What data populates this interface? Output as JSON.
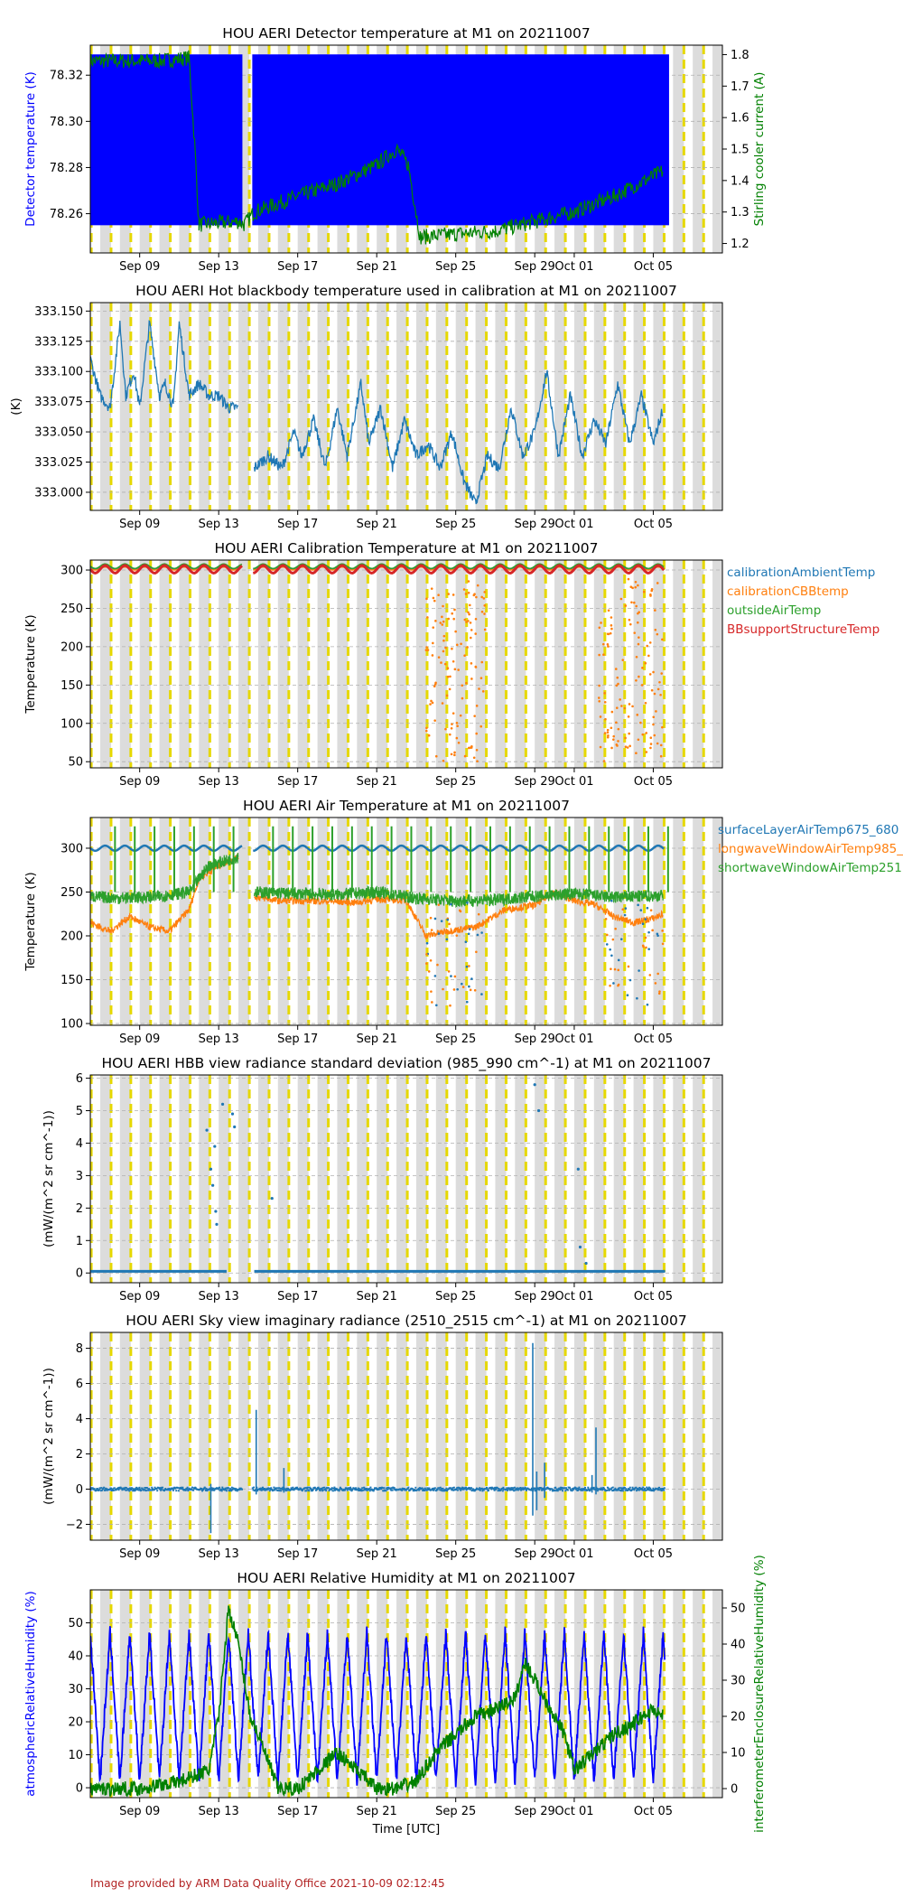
{
  "footer": "Image provided by ARM Data Quality Office 2021-10-09 02:12:45",
  "x_axis": {
    "ticks": [
      "Sep 09",
      "Sep 13",
      "Sep 17",
      "Sep 21",
      "Sep 25",
      "Sep 29",
      "Oct 01",
      "Oct 05"
    ],
    "xlabel": "Time [UTC]"
  },
  "chart_data": [
    {
      "type": "line",
      "title": "HOU AERI Detector temperature at M1 on 20211007",
      "ylabel": "Detector temperature (K)",
      "ylabel_color": "#0000ff",
      "ylim": [
        78.243,
        78.333
      ],
      "yticks": [
        "78.26",
        "78.28",
        "78.30",
        "78.32"
      ],
      "y2label": "Stirling cooler current (A)",
      "y2label_color": "#008000",
      "y2lim": [
        1.17,
        1.83
      ],
      "y2ticks": [
        "1.2",
        "1.3",
        "1.4",
        "1.5",
        "1.6",
        "1.7",
        "1.8"
      ],
      "series": [
        {
          "color": "#0000ff",
          "band": [
            78.255,
            78.329
          ],
          "gap": [
            14.2,
            14.7
          ],
          "ref": "y"
        },
        {
          "color": "#008000",
          "ref": "y2",
          "x": [
            6.5,
            10,
            11.5,
            11.8,
            12.0,
            14.0,
            14.3,
            14.8,
            17,
            19,
            21.0,
            22.0,
            22.6,
            23.2,
            25,
            27,
            29,
            31,
            33,
            35.5
          ],
          "y": [
            1.78,
            1.78,
            1.79,
            1.5,
            1.26,
            1.27,
            1.26,
            1.3,
            1.35,
            1.39,
            1.45,
            1.5,
            1.45,
            1.22,
            1.23,
            1.24,
            1.27,
            1.3,
            1.35,
            1.43
          ]
        }
      ]
    },
    {
      "type": "line",
      "title": "HOU AERI Hot blackbody temperature used in calibration at M1 on 20211007",
      "ylabel": "(K)",
      "ylim": [
        332.985,
        333.157
      ],
      "yticks": [
        "333.000",
        "333.025",
        "333.050",
        "333.075",
        "333.100",
        "333.125",
        "333.150"
      ],
      "series": [
        {
          "color": "#1f77b4",
          "x": [
            6.5,
            7.0,
            7.5,
            8.0,
            8.3,
            8.7,
            9.0,
            9.5,
            10.0,
            10.3,
            10.7,
            11.0,
            11.5,
            12.0,
            12.5,
            13.0,
            13.5,
            14.0,
            null,
            14.8,
            15.5,
            16.2,
            16.8,
            17.2,
            17.8,
            18.4,
            19.0,
            19.5,
            20.2,
            20.6,
            21.2,
            21.8,
            22.4,
            23.0,
            23.6,
            24.2,
            24.8,
            25.4,
            26.0,
            26.6,
            27.2,
            27.8,
            28.4,
            29.0,
            29.6,
            30.2,
            30.8,
            31.4,
            32.0,
            32.6,
            33.2,
            33.8,
            34.4,
            35.0,
            35.5
          ],
          "y": [
            333.11,
            333.08,
            333.07,
            333.14,
            333.08,
            333.1,
            333.07,
            333.14,
            333.08,
            333.09,
            333.07,
            333.14,
            333.08,
            333.09,
            333.08,
            333.08,
            333.07,
            333.07,
            null,
            333.02,
            333.03,
            333.02,
            333.05,
            333.03,
            333.06,
            333.02,
            333.07,
            333.03,
            333.09,
            333.04,
            333.07,
            333.02,
            333.06,
            333.03,
            333.04,
            333.02,
            333.05,
            333.01,
            332.99,
            333.03,
            333.02,
            333.07,
            333.03,
            333.05,
            333.1,
            333.03,
            333.08,
            333.03,
            333.06,
            333.04,
            333.09,
            333.04,
            333.08,
            333.04,
            333.07
          ]
        }
      ]
    },
    {
      "type": "line",
      "title": "HOU AERI Calibration Temperature at M1 on 20211007",
      "ylabel": "Temperature (K)",
      "ylim": [
        42,
        313
      ],
      "yticks": [
        "50",
        "100",
        "150",
        "200",
        "250",
        "300"
      ],
      "legend": "right",
      "series": [
        {
          "name": "calibrationAmbientTemp",
          "color": "#1f77b4",
          "base": 303,
          "amp": 2
        },
        {
          "name": "calibrationCBBtemp",
          "color": "#ff7f0e",
          "base": 302,
          "amp": 2
        },
        {
          "name": "outsideAirTemp",
          "color": "#2ca02c",
          "base": 305,
          "amp": 3
        },
        {
          "name": "BBsupportStructureTemp",
          "color": "#d62728",
          "base": 301,
          "amp": 5
        }
      ]
    },
    {
      "type": "line",
      "title": "HOU AERI Air Temperature at M1 on 20211007",
      "ylabel": "Temperature (K)",
      "ylim": [
        98,
        335
      ],
      "yticks": [
        "100",
        "150",
        "200",
        "250",
        "300"
      ],
      "legend": "right",
      "series": [
        {
          "name": "surfaceLayerAirTemp675_680",
          "color": "#1f77b4",
          "x": [
            6.5,
            35.5
          ],
          "y": [
            300,
            300
          ]
        },
        {
          "name": "longwaveWindowAirTemp985_",
          "color": "#ff7f0e",
          "x": [
            6.5,
            7.5,
            8.5,
            9.5,
            10.5,
            11.5,
            12.0,
            13.0,
            14.0,
            null,
            14.8,
            16,
            18,
            20,
            21,
            22.5,
            23.5,
            24.5,
            26,
            27.5,
            29,
            30,
            31,
            32,
            33,
            34,
            35,
            35.5
          ],
          "y": [
            215,
            205,
            222,
            210,
            205,
            230,
            265,
            280,
            290,
            null,
            245,
            240,
            240,
            238,
            242,
            240,
            200,
            205,
            210,
            230,
            235,
            250,
            240,
            236,
            222,
            215,
            220,
            225
          ]
        },
        {
          "name": "shortwaveWindowAirTemp251",
          "color": "#2ca02c",
          "x": [
            6.5,
            8,
            10,
            11.5,
            12.5,
            14.0,
            null,
            14.8,
            17,
            19,
            21,
            23,
            25,
            27,
            29,
            31,
            33,
            35.5
          ],
          "y": [
            245,
            243,
            245,
            250,
            280,
            290,
            null,
            250,
            248,
            247,
            250,
            243,
            240,
            241,
            245,
            248,
            244,
            246
          ]
        }
      ]
    },
    {
      "type": "scatter",
      "title": "HOU AERI HBB view radiance standard deviation (985_990 cm^-1) at M1 on 20211007",
      "ylabel": "(mW/(m^2 sr cm^-1))",
      "ylim": [
        -0.3,
        6.1
      ],
      "yticks": [
        "0",
        "1",
        "2",
        "3",
        "4",
        "5",
        "6"
      ],
      "series": [
        {
          "color": "#1f77b4",
          "x": [
            12.4,
            12.6,
            12.7,
            12.8,
            12.85,
            12.9,
            13.2,
            13.7,
            13.8,
            15.7,
            29.0,
            29.2,
            31.2,
            31.3,
            31.6
          ],
          "y": [
            4.4,
            3.2,
            2.7,
            3.9,
            1.9,
            1.5,
            5.2,
            4.9,
            4.5,
            2.3,
            5.8,
            5.0,
            3.2,
            0.8,
            0.3
          ],
          "baseline": 0.05
        }
      ]
    },
    {
      "type": "line",
      "title": "HOU AERI Sky view imaginary radiance (2510_2515 cm^-1) at M1 on 20211007",
      "ylabel": "(mW/(m^2 sr cm^-1))",
      "ylim": [
        -2.9,
        8.9
      ],
      "yticks": [
        "−2",
        "0",
        "2",
        "4",
        "6",
        "8"
      ],
      "series": [
        {
          "color": "#1f77b4",
          "spikes": [
            [
              12.6,
              -2.5,
              0.3
            ],
            [
              14.9,
              -0.3,
              4.5
            ],
            [
              16.3,
              -0.2,
              1.2
            ],
            [
              28.9,
              -1.5,
              8.3
            ],
            [
              29.1,
              -1.2,
              1.0
            ],
            [
              29.5,
              -0.5,
              1.5
            ],
            [
              32.1,
              -0.3,
              3.5
            ],
            [
              31.9,
              -0.2,
              0.8
            ]
          ],
          "baseline": 0.0
        }
      ]
    },
    {
      "type": "line",
      "title": "HOU AERI Relative Humidity at M1 on 20211007",
      "ylabel": "atmosphericRelativeHumidity (%)",
      "ylabel_color": "#0000ff",
      "ylim": [
        -3,
        60
      ],
      "yticks": [
        "0",
        "10",
        "20",
        "30",
        "40",
        "50"
      ],
      "y2label": "interferometerEnclosureRelativeHumidity (%)",
      "y2label_color": "#008000",
      "y2lim": [
        -2.5,
        55
      ],
      "y2ticks": [
        "0",
        "10",
        "20",
        "30",
        "40",
        "50"
      ],
      "xlabel": "Time [UTC]",
      "series": [
        {
          "color": "#0000ff",
          "ref": "y",
          "daily_range": [
            0,
            52
          ]
        },
        {
          "color": "#008000",
          "ref": "y2",
          "x": [
            6.5,
            9,
            11,
            12.5,
            13.0,
            13.5,
            14.0,
            14.6,
            15.0,
            16,
            17,
            18,
            19,
            20,
            21,
            22,
            23,
            24,
            25,
            26,
            27,
            28,
            28.5,
            29,
            30,
            30.5,
            31,
            32,
            33,
            34,
            35,
            35.5
          ],
          "y": [
            0,
            0,
            2,
            5,
            20,
            50,
            40,
            20,
            15,
            0,
            0,
            5,
            10,
            5,
            0,
            0,
            2,
            10,
            15,
            20,
            22,
            25,
            35,
            30,
            20,
            15,
            5,
            10,
            15,
            18,
            22,
            20
          ]
        }
      ]
    }
  ]
}
